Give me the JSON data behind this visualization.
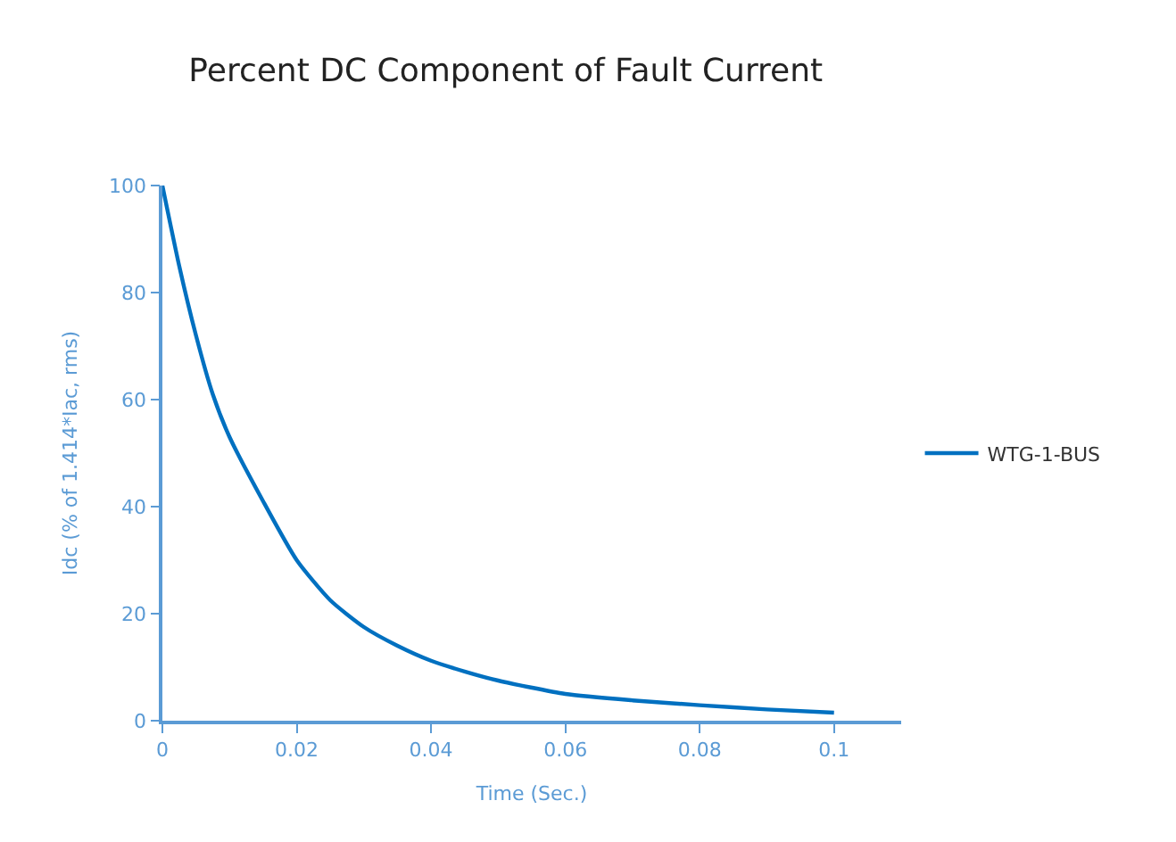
{
  "chart_data": {
    "type": "line",
    "title": "Percent DC Component of Fault Current",
    "xlabel": "Time (Sec.)",
    "ylabel": "Idc (% of 1.414*Iac, rms)",
    "x": [
      0,
      0.0025,
      0.005,
      0.0075,
      0.01,
      0.015,
      0.02,
      0.025,
      0.03,
      0.035,
      0.04,
      0.045,
      0.05,
      0.06,
      0.07,
      0.08,
      0.09,
      0.1
    ],
    "series": [
      {
        "name": "WTG-1-BUS",
        "color": "#0070c0",
        "values": [
          100,
          85,
          72,
          61,
          53,
          41,
          30,
          22.5,
          17.5,
          14,
          11.2,
          9.2,
          7.5,
          5,
          3.8,
          2.9,
          2.1,
          1.5
        ]
      }
    ],
    "xlim": [
      0,
      0.11
    ],
    "xticks": [
      0,
      0.02,
      0.04,
      0.06,
      0.08,
      0.1
    ],
    "ylim": [
      0,
      100
    ],
    "yticks": [
      0,
      20,
      40,
      60,
      80,
      100
    ],
    "legend": "right",
    "marker": "none",
    "line_style": "solid"
  }
}
